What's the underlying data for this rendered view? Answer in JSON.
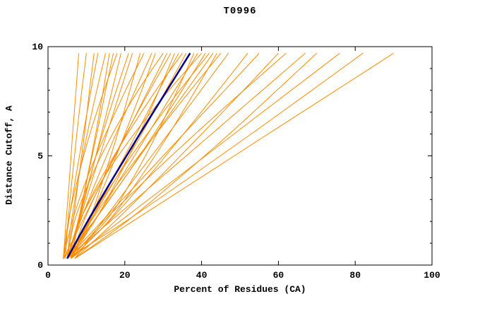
{
  "chart_data": {
    "type": "line",
    "title": "T0996",
    "xlabel": "Percent of Residues (CA)",
    "ylabel": "Distance Cutoff, A",
    "xlim": [
      0,
      100
    ],
    "ylim": [
      0,
      10
    ],
    "xticks": [
      0,
      20,
      40,
      60,
      80,
      100
    ],
    "yticks_major": [
      0,
      5,
      10
    ],
    "yticks_minor": [
      1,
      2,
      3,
      4,
      6,
      7,
      8,
      9
    ],
    "grid": false,
    "legend": "none",
    "colors": {
      "model_lines": "#ff8c00",
      "median_line": "#00008b",
      "axis": "#000000",
      "background": "#ffffff"
    },
    "y_levels": [
      0.3,
      2,
      4,
      6,
      8,
      9.7
    ],
    "model_series": [
      [
        4,
        4.7,
        5.6,
        6.4,
        7.3,
        8
      ],
      [
        4.5,
        5.2,
        6.3,
        7.5,
        8.8,
        10
      ],
      [
        5,
        6.5,
        8,
        9.5,
        10.8,
        12
      ],
      [
        4,
        5.4,
        7.2,
        9.2,
        11.2,
        13
      ],
      [
        5,
        6.1,
        8,
        10.2,
        12.7,
        15
      ],
      [
        5,
        7.8,
        10.2,
        12.4,
        14.4,
        16
      ],
      [
        6,
        8,
        10.3,
        12.7,
        15,
        17
      ],
      [
        4,
        5.3,
        7.8,
        10.9,
        14.6,
        18
      ],
      [
        5,
        8,
        11,
        13.9,
        16.7,
        19
      ],
      [
        6,
        7.9,
        10.9,
        14.2,
        17.8,
        21
      ],
      [
        5,
        8.1,
        11.7,
        15.3,
        18.9,
        22
      ],
      [
        6,
        10.6,
        14.5,
        18.1,
        21.3,
        24
      ],
      [
        4,
        6.3,
        10.2,
        15,
        20.2,
        25
      ],
      [
        5,
        8.4,
        12.9,
        17.7,
        22.7,
        27
      ],
      [
        6,
        10.7,
        15.5,
        20,
        24.4,
        28
      ],
      [
        5,
        6.9,
        11.2,
        16.8,
        23.5,
        30
      ],
      [
        4,
        8.9,
        14.6,
        20.4,
        26.1,
        31
      ],
      [
        6,
        9.3,
        14.5,
        20.3,
        26.5,
        32
      ],
      [
        5,
        12.1,
        18.3,
        23.8,
        28.9,
        33
      ],
      [
        6,
        11.1,
        17,
        23,
        28.9,
        34
      ],
      [
        5,
        8.2,
        13.9,
        20.7,
        28.1,
        35
      ],
      [
        4,
        10.9,
        17.8,
        24.4,
        30.7,
        36
      ],
      [
        6,
        10.7,
        17.1,
        23.9,
        30.9,
        37
      ],
      [
        5,
        15,
        22.2,
        28.3,
        33.7,
        38
      ],
      [
        6,
        12,
        19,
        26,
        33,
        39
      ],
      [
        5,
        8.2,
        14.5,
        22.4,
        31.5,
        40
      ],
      [
        4,
        11.9,
        20,
        27.6,
        34.9,
        41
      ],
      [
        6,
        10.6,
        17.8,
        25.8,
        34.3,
        42
      ],
      [
        5,
        11.9,
        20,
        28,
        36.1,
        43
      ],
      [
        6,
        15.7,
        24,
        31.5,
        38.4,
        44
      ],
      [
        5,
        11.1,
        19.3,
        28.1,
        37.1,
        45
      ],
      [
        7,
        14.2,
        22.7,
        31.3,
        39.8,
        47
      ],
      [
        6,
        15.9,
        25.9,
        35.3,
        44.4,
        52
      ],
      [
        5,
        14,
        24.7,
        35.3,
        46,
        55
      ],
      [
        7,
        17.4,
        28.9,
        40,
        50.9,
        60
      ],
      [
        6,
        14.5,
        26.1,
        38.3,
        51,
        62
      ],
      [
        5,
        16.2,
        29.4,
        42.6,
        55.8,
        67
      ],
      [
        7,
        20.5,
        34.2,
        47.2,
        59.6,
        70
      ],
      [
        6,
        18.7,
        33.6,
        48.4,
        63.3,
        76
      ],
      [
        5,
        20.2,
        36.8,
        52.9,
        68.7,
        82
      ],
      [
        7,
        22,
        39.7,
        57.3,
        75,
        90
      ]
    ],
    "median_series": [
      5,
      10.3,
      17,
      23.9,
      31,
      37
    ]
  }
}
